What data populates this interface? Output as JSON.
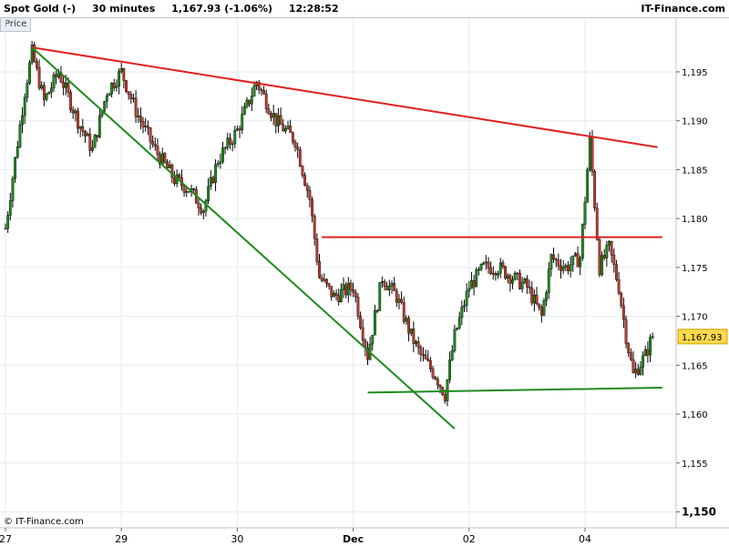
{
  "header": {
    "instrument": "Spot Gold (-)",
    "timeframe": "30 minutes",
    "last": "1,167.93 (-1.06%)",
    "time": "12:28:52",
    "brand": "IT-Finance.com"
  },
  "pane_label": "Price",
  "footer": "© IT-Finance.com",
  "chart_data": {
    "type": "candlestick",
    "ylim": [
      1148,
      1199
    ],
    "y_ticks": [
      {
        "value": 1195,
        "label": "1,195"
      },
      {
        "value": 1190,
        "label": "1,190"
      },
      {
        "value": 1185,
        "label": "1,185"
      },
      {
        "value": 1180,
        "label": "1,180"
      },
      {
        "value": 1175,
        "label": "1,175"
      },
      {
        "value": 1170,
        "label": "1,170"
      },
      {
        "value": 1165,
        "label": "1,165"
      },
      {
        "value": 1160,
        "label": "1,160"
      },
      {
        "value": 1155,
        "label": "1,155"
      },
      {
        "value": 1150,
        "label": "1,150"
      }
    ],
    "x_ticks": [
      {
        "label": "27",
        "bar": 0
      },
      {
        "label": "29",
        "bar": 48
      },
      {
        "label": "30",
        "bar": 96
      },
      {
        "label": "Dec",
        "bar": 144
      },
      {
        "label": "02",
        "bar": 192
      },
      {
        "label": "04",
        "bar": 240
      }
    ],
    "last_price": {
      "value": 1167.93,
      "label": "1,167.93"
    },
    "path": [
      [
        0,
        1179
      ],
      [
        4,
        1186
      ],
      [
        8,
        1193
      ],
      [
        11,
        1197
      ],
      [
        16,
        1192
      ],
      [
        22,
        1195
      ],
      [
        30,
        1190
      ],
      [
        36,
        1187
      ],
      [
        42,
        1193
      ],
      [
        48,
        1195
      ],
      [
        54,
        1191
      ],
      [
        62,
        1187
      ],
      [
        70,
        1184
      ],
      [
        76,
        1183
      ],
      [
        82,
        1181
      ],
      [
        88,
        1186
      ],
      [
        96,
        1189
      ],
      [
        104,
        1194
      ],
      [
        112,
        1190
      ],
      [
        120,
        1188
      ],
      [
        126,
        1182
      ],
      [
        130,
        1174
      ],
      [
        136,
        1172
      ],
      [
        144,
        1173
      ],
      [
        150,
        1166
      ],
      [
        156,
        1174
      ],
      [
        162,
        1172
      ],
      [
        168,
        1168
      ],
      [
        172,
        1166
      ],
      [
        178,
        1164
      ],
      [
        182,
        1162
      ],
      [
        186,
        1168
      ],
      [
        192,
        1173
      ],
      [
        198,
        1175
      ],
      [
        204,
        1175
      ],
      [
        210,
        1174
      ],
      [
        216,
        1173
      ],
      [
        222,
        1170
      ],
      [
        226,
        1176
      ],
      [
        232,
        1175
      ],
      [
        238,
        1176
      ],
      [
        242,
        1188
      ],
      [
        246,
        1175
      ],
      [
        250,
        1177
      ],
      [
        254,
        1173
      ],
      [
        257,
        1168
      ],
      [
        260,
        1164
      ],
      [
        265,
        1166
      ],
      [
        268,
        1168
      ]
    ],
    "trendlines": [
      {
        "color": "#e0201e",
        "from": [
          11,
          1197.5
        ],
        "to": [
          270,
          1187.3
        ]
      },
      {
        "color": "#e0201e",
        "from": [
          131,
          1178.1
        ],
        "to": [
          272,
          1178.1
        ]
      },
      {
        "color": "#1d8a1d",
        "from": [
          11,
          1197.5
        ],
        "to": [
          186,
          1158.5
        ]
      },
      {
        "color": "#1d8a1d",
        "from": [
          150,
          1162.2
        ],
        "to": [
          272,
          1162.7
        ]
      }
    ],
    "candle_colors": {
      "up": "#1d8a1d",
      "down": "#c0392b",
      "wick": "#000000"
    }
  }
}
